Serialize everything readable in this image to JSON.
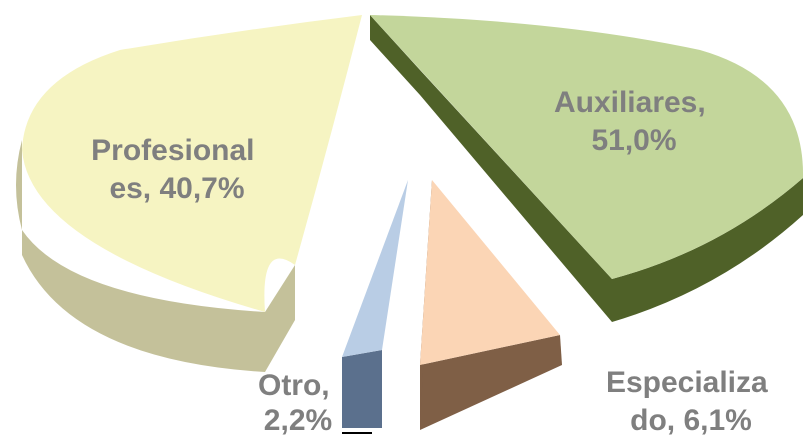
{
  "chart_data": {
    "type": "pie",
    "style": "3d-exploded",
    "slices": [
      {
        "name": "Auxiliares",
        "value": 51.0,
        "label_lines": [
          "Auxiliares,",
          "51,0%"
        ],
        "top_color": "#c3d69b",
        "side_color": "#4f6128"
      },
      {
        "name": "Especializado",
        "value": 6.1,
        "label_lines": [
          "Especializa",
          "do, 6,1%"
        ],
        "top_color": "#fbd5b5",
        "side_color": "#7f5f46"
      },
      {
        "name": "Otro",
        "value": 2.2,
        "label_lines": [
          "Otro,",
          "2,2%"
        ],
        "top_color": "#b9cde5",
        "side_color": "#5b708d"
      },
      {
        "name": "Profesionales",
        "value": 40.7,
        "label_lines": [
          "Profesional",
          "es, 40,7%"
        ],
        "top_color": "#f6f4c2",
        "side_color": "#c4c19a"
      }
    ]
  }
}
